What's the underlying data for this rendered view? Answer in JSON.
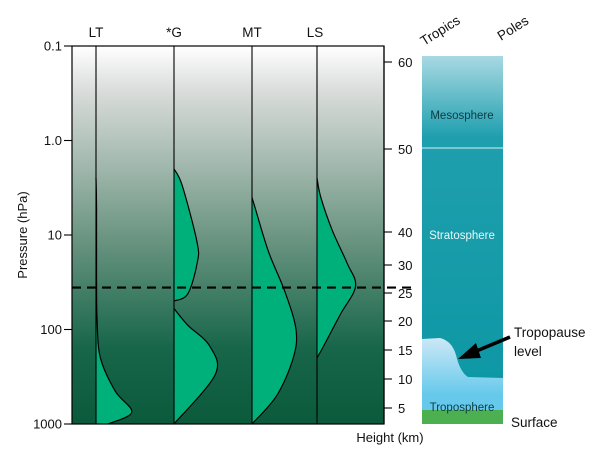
{
  "chart_data": {
    "type": "line",
    "ylabel": "Pressure (hPa)",
    "xlabel": "Height (km)",
    "pressure_ticks": [
      "0.1",
      "1.0",
      "10",
      "100",
      "1000"
    ],
    "height_ticks": [
      "60",
      "50",
      "40",
      "30",
      "25",
      "20",
      "15",
      "10",
      "5"
    ],
    "dashed_line_pressure_hPa": 36,
    "series": [
      {
        "name": "LT",
        "profile": [
          [
            1000,
            0.22
          ],
          [
            750,
            0.65
          ],
          [
            450,
            0.35
          ],
          [
            200,
            0.08
          ],
          [
            80,
            0.02
          ],
          [
            30,
            0.01
          ],
          [
            5,
            0.01
          ],
          [
            2.5,
            0.0
          ]
        ]
      },
      {
        "name": "*G",
        "profile": [
          [
            1000,
            0.0
          ],
          [
            300,
            0.75
          ],
          [
            150,
            0.65
          ],
          [
            90,
            0.25
          ],
          [
            60,
            0.0
          ]
        ],
        "upper_profile": [
          [
            50,
            0.0
          ],
          [
            42,
            0.25
          ],
          [
            20,
            0.42
          ],
          [
            12,
            0.42
          ],
          [
            3,
            0.15
          ],
          [
            2,
            0.0
          ]
        ]
      },
      {
        "name": "MT",
        "profile": [
          [
            1000,
            0.0
          ],
          [
            500,
            0.45
          ],
          [
            200,
            0.75
          ],
          [
            100,
            0.8
          ],
          [
            40,
            0.6
          ],
          [
            15,
            0.3
          ],
          [
            5,
            0.05
          ],
          [
            4,
            0.0
          ]
        ]
      },
      {
        "name": "LS",
        "profile": [
          [
            200,
            0.0
          ],
          [
            150,
            0.12
          ],
          [
            70,
            0.42
          ],
          [
            35,
            0.7
          ],
          [
            20,
            0.55
          ],
          [
            9,
            0.28
          ],
          [
            4,
            0.07
          ],
          [
            2.5,
            0.0
          ]
        ]
      }
    ]
  },
  "side_panel": {
    "tropics_label": "Tropics",
    "poles_label": "Poles",
    "layers": [
      "Mesosphere",
      "Stratosphere",
      "Troposphere"
    ],
    "tropopause_label": [
      "Tropopause",
      "level"
    ],
    "surface_label": "Surface"
  },
  "colors": {
    "profile_fill": "#00b07a",
    "panel_top": "#a8d8e2",
    "panel_main": "#109aa8",
    "troposphere": "#7dcfee",
    "surface": "#4caf50"
  }
}
